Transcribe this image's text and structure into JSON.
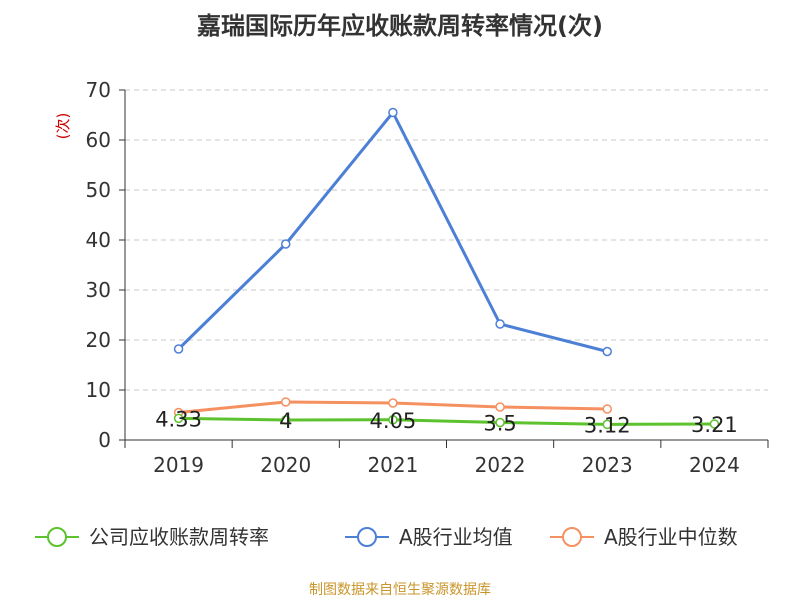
{
  "chart_data": {
    "type": "line",
    "title": "嘉瑞国际历年应收账款周转率情况(次)",
    "ylabel": "(次)",
    "xlabel": "",
    "categories": [
      "2019",
      "2020",
      "2021",
      "2022",
      "2023",
      "2024"
    ],
    "yticks": [
      "0",
      "10",
      "20",
      "30",
      "40",
      "50",
      "60",
      "70"
    ],
    "ylim": [
      0,
      70
    ],
    "grid": true,
    "legend_position": "bottom",
    "series": [
      {
        "name": "公司应收账款周转率",
        "color": "#5cc22e",
        "values": [
          4.33,
          4,
          4.05,
          3.5,
          3.12,
          3.21
        ],
        "labels": [
          "4.33",
          "4",
          "4.05",
          "3.5",
          "3.12",
          "3.21"
        ]
      },
      {
        "name": "A股行业均值",
        "color": "#4c7fd6",
        "values": [
          18.2,
          39.2,
          65.5,
          23.2,
          17.7,
          null
        ]
      },
      {
        "name": "A股行业中位数",
        "color": "#f59060",
        "values": [
          5.5,
          7.6,
          7.4,
          6.6,
          6.2,
          null
        ]
      }
    ]
  },
  "source": "制图数据来自恒生聚源数据库"
}
